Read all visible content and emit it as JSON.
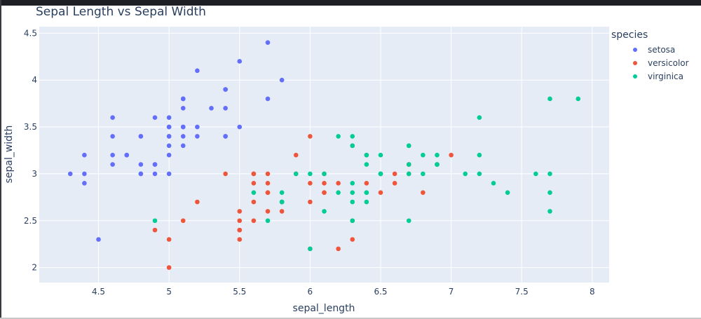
{
  "title": "Sepal Length vs Sepal Width",
  "legend": {
    "title": "species",
    "items": [
      {
        "label": "setosa",
        "color": "#636efa"
      },
      {
        "label": "versicolor",
        "color": "#ef553b"
      },
      {
        "label": "virginica",
        "color": "#00cc96"
      }
    ]
  },
  "axes": {
    "xlabel": "sepal_length",
    "ylabel": "sepal_width",
    "xticks": [
      "4.5",
      "5",
      "5.5",
      "6",
      "6.5",
      "7",
      "7.5",
      "8"
    ],
    "yticks": [
      "2",
      "2.5",
      "3",
      "3.5",
      "4",
      "4.5"
    ]
  },
  "chart_data": {
    "type": "scatter",
    "title": "Sepal Length vs Sepal Width",
    "xlabel": "sepal_length",
    "ylabel": "sepal_width",
    "xlim": [
      4.08,
      8.12
    ],
    "ylim": [
      1.84,
      4.57
    ],
    "grid": true,
    "legend_position": "right",
    "legend_title": "species",
    "series": [
      {
        "name": "setosa",
        "color": "#636efa",
        "points": [
          [
            5.1,
            3.5
          ],
          [
            4.9,
            3.0
          ],
          [
            4.7,
            3.2
          ],
          [
            4.6,
            3.1
          ],
          [
            5.0,
            3.6
          ],
          [
            5.4,
            3.9
          ],
          [
            4.6,
            3.4
          ],
          [
            5.0,
            3.4
          ],
          [
            4.4,
            2.9
          ],
          [
            4.9,
            3.1
          ],
          [
            5.4,
            3.7
          ],
          [
            4.8,
            3.4
          ],
          [
            4.8,
            3.0
          ],
          [
            4.3,
            3.0
          ],
          [
            5.8,
            4.0
          ],
          [
            5.7,
            4.4
          ],
          [
            5.4,
            3.9
          ],
          [
            5.1,
            3.5
          ],
          [
            5.7,
            3.8
          ],
          [
            5.1,
            3.8
          ],
          [
            5.4,
            3.4
          ],
          [
            5.1,
            3.7
          ],
          [
            4.6,
            3.6
          ],
          [
            5.1,
            3.3
          ],
          [
            4.8,
            3.4
          ],
          [
            5.0,
            3.0
          ],
          [
            5.0,
            3.4
          ],
          [
            5.2,
            3.5
          ],
          [
            5.2,
            3.4
          ],
          [
            4.7,
            3.2
          ],
          [
            4.8,
            3.1
          ],
          [
            5.4,
            3.4
          ],
          [
            5.2,
            4.1
          ],
          [
            5.5,
            4.2
          ],
          [
            4.9,
            3.1
          ],
          [
            5.0,
            3.2
          ],
          [
            5.5,
            3.5
          ],
          [
            4.9,
            3.6
          ],
          [
            4.4,
            3.0
          ],
          [
            5.1,
            3.4
          ],
          [
            5.0,
            3.5
          ],
          [
            4.5,
            2.3
          ],
          [
            4.4,
            3.2
          ],
          [
            5.0,
            3.5
          ],
          [
            5.1,
            3.8
          ],
          [
            4.8,
            3.0
          ],
          [
            5.1,
            3.8
          ],
          [
            4.6,
            3.2
          ],
          [
            5.3,
            3.7
          ],
          [
            5.0,
            3.3
          ]
        ]
      },
      {
        "name": "versicolor",
        "color": "#ef553b",
        "points": [
          [
            7.0,
            3.2
          ],
          [
            6.4,
            3.2
          ],
          [
            6.9,
            3.1
          ],
          [
            5.5,
            2.3
          ],
          [
            6.5,
            2.8
          ],
          [
            5.7,
            2.8
          ],
          [
            6.3,
            3.3
          ],
          [
            4.9,
            2.4
          ],
          [
            6.6,
            2.9
          ],
          [
            5.2,
            2.7
          ],
          [
            5.0,
            2.0
          ],
          [
            5.9,
            3.0
          ],
          [
            6.0,
            2.2
          ],
          [
            6.1,
            2.9
          ],
          [
            5.6,
            2.9
          ],
          [
            6.7,
            3.1
          ],
          [
            5.6,
            3.0
          ],
          [
            5.8,
            2.7
          ],
          [
            6.2,
            2.2
          ],
          [
            5.6,
            2.5
          ],
          [
            5.9,
            3.2
          ],
          [
            6.1,
            2.8
          ],
          [
            6.3,
            2.5
          ],
          [
            6.1,
            2.8
          ],
          [
            6.4,
            2.9
          ],
          [
            6.6,
            3.0
          ],
          [
            6.8,
            2.8
          ],
          [
            6.7,
            3.0
          ],
          [
            6.0,
            2.9
          ],
          [
            5.7,
            2.6
          ],
          [
            5.5,
            2.4
          ],
          [
            5.5,
            2.4
          ],
          [
            5.8,
            2.7
          ],
          [
            6.0,
            2.7
          ],
          [
            5.4,
            3.0
          ],
          [
            6.0,
            3.4
          ],
          [
            6.7,
            3.1
          ],
          [
            6.3,
            2.3
          ],
          [
            5.6,
            3.0
          ],
          [
            5.5,
            2.5
          ],
          [
            5.5,
            2.6
          ],
          [
            6.1,
            3.0
          ],
          [
            5.8,
            2.6
          ],
          [
            5.0,
            2.3
          ],
          [
            5.6,
            2.7
          ],
          [
            5.7,
            3.0
          ],
          [
            5.7,
            2.9
          ],
          [
            6.2,
            2.9
          ],
          [
            5.1,
            2.5
          ],
          [
            5.7,
            2.8
          ]
        ]
      },
      {
        "name": "virginica",
        "color": "#00cc96",
        "points": [
          [
            6.3,
            3.3
          ],
          [
            5.8,
            2.7
          ],
          [
            7.1,
            3.0
          ],
          [
            6.3,
            2.9
          ],
          [
            6.5,
            3.0
          ],
          [
            7.6,
            3.0
          ],
          [
            4.9,
            2.5
          ],
          [
            7.3,
            2.9
          ],
          [
            6.7,
            2.5
          ],
          [
            7.2,
            3.6
          ],
          [
            6.5,
            3.2
          ],
          [
            6.4,
            2.7
          ],
          [
            6.8,
            3.0
          ],
          [
            5.7,
            2.5
          ],
          [
            5.8,
            2.8
          ],
          [
            6.4,
            3.2
          ],
          [
            6.5,
            3.0
          ],
          [
            7.7,
            3.8
          ],
          [
            7.7,
            2.6
          ],
          [
            6.0,
            2.2
          ],
          [
            6.9,
            3.2
          ],
          [
            5.6,
            2.8
          ],
          [
            7.7,
            2.8
          ],
          [
            6.3,
            2.7
          ],
          [
            6.7,
            3.3
          ],
          [
            7.2,
            3.2
          ],
          [
            6.2,
            2.8
          ],
          [
            6.1,
            3.0
          ],
          [
            6.4,
            2.8
          ],
          [
            7.2,
            3.0
          ],
          [
            7.4,
            2.8
          ],
          [
            7.9,
            3.8
          ],
          [
            6.4,
            2.8
          ],
          [
            6.3,
            2.8
          ],
          [
            6.1,
            2.6
          ],
          [
            7.7,
            3.0
          ],
          [
            6.3,
            3.4
          ],
          [
            6.4,
            3.1
          ],
          [
            6.0,
            3.0
          ],
          [
            6.9,
            3.1
          ],
          [
            6.7,
            3.1
          ],
          [
            6.9,
            3.1
          ],
          [
            5.8,
            2.7
          ],
          [
            6.8,
            3.2
          ],
          [
            6.7,
            3.3
          ],
          [
            6.7,
            3.0
          ],
          [
            6.3,
            2.5
          ],
          [
            6.5,
            3.0
          ],
          [
            6.2,
            3.4
          ],
          [
            5.9,
            3.0
          ]
        ]
      }
    ]
  }
}
